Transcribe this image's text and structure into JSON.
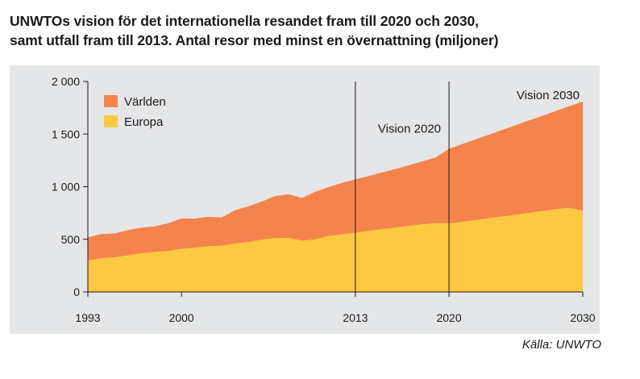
{
  "title": {
    "line1": "UNWTOs vision för det internationella resandet fram till 2020 och 2030,",
    "line2": "samt utfall fram till 2013. Antal resor med minst en övernattning (miljoner)"
  },
  "source": "Källa: UNWTO",
  "colors": {
    "world": "#f4844c",
    "europe": "#fec942",
    "panel": "#e5e6e8",
    "vline": "#1a1a1a"
  },
  "chart_data": {
    "type": "area",
    "title": "UNWTOs vision för det internationella resandet fram till 2020 och 2030, samt utfall fram till 2013. Antal resor med minst en övernattning (miljoner)",
    "xlabel": "",
    "ylabel": "",
    "xlim": [
      1993,
      2030
    ],
    "ylim": [
      0,
      2000
    ],
    "yticks": [
      {
        "value": 0,
        "label": "0"
      },
      {
        "value": 500,
        "label": "500"
      },
      {
        "value": 1000,
        "label": "1 000"
      },
      {
        "value": 1500,
        "label": "1 500"
      },
      {
        "value": 2000,
        "label": "2 000"
      }
    ],
    "xticks": [
      {
        "value": 1993,
        "label": "1993"
      },
      {
        "value": 2000,
        "label": "2000"
      },
      {
        "value": 2013,
        "label": "2013"
      },
      {
        "value": 2020,
        "label": "2020"
      },
      {
        "value": 2030,
        "label": "2030"
      }
    ],
    "grid": false,
    "legend_position": "top-left",
    "series": [
      {
        "name": "Världen",
        "color": "#f4844c",
        "x": [
          1993,
          1994,
          1995,
          1996,
          1997,
          1998,
          1999,
          2000,
          2001,
          2002,
          2003,
          2004,
          2005,
          2006,
          2007,
          2008,
          2009,
          2010,
          2011,
          2012,
          2013,
          2014,
          2015,
          2016,
          2017,
          2018,
          2019,
          2020,
          2021,
          2022,
          2023,
          2024,
          2025,
          2026,
          2027,
          2028,
          2029,
          2030
        ],
        "values": [
          519,
          550,
          556,
          588,
          610,
          624,
          652,
          698,
          696,
          714,
          708,
          776,
          813,
          858,
          911,
          928,
          893,
          952,
          996,
          1035,
          1070,
          1102,
          1135,
          1169,
          1204,
          1240,
          1277,
          1360,
          1405,
          1450,
          1495,
          1540,
          1585,
          1630,
          1675,
          1720,
          1765,
          1809
        ]
      },
      {
        "name": "Europa",
        "color": "#fec942",
        "x": [
          1993,
          1994,
          1995,
          1996,
          1997,
          1998,
          1999,
          2000,
          2001,
          2002,
          2003,
          2004,
          2005,
          2006,
          2007,
          2008,
          2009,
          2010,
          2011,
          2012,
          2013,
          2014,
          2015,
          2016,
          2017,
          2018,
          2019,
          2020,
          2021,
          2022,
          2023,
          2024,
          2025,
          2026,
          2027,
          2028,
          2029,
          2030
        ],
        "values": [
          300,
          320,
          330,
          348,
          368,
          380,
          390,
          410,
          420,
          435,
          440,
          460,
          475,
          497,
          512,
          514,
          488,
          500,
          531,
          547,
          563,
          580,
          597,
          612,
          628,
          644,
          654,
          650,
          667,
          684,
          701,
          718,
          735,
          752,
          770,
          787,
          800,
          770
        ]
      }
    ],
    "annotations": [
      {
        "x": 2013,
        "label": "Vision 2020",
        "label_y": 1550,
        "anchor": "start"
      },
      {
        "x": 2020,
        "label": "Vision 2030",
        "label_y": 1870,
        "anchor": "end_at_right"
      }
    ]
  }
}
